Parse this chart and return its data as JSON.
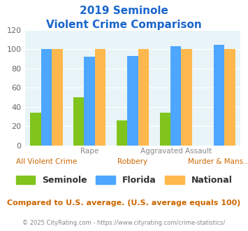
{
  "title_line1": "2019 Seminole",
  "title_line2": "Violent Crime Comparison",
  "categories": [
    "All Violent Crime",
    "Rape",
    "Robbery",
    "Aggravated Assault",
    "Murder & Mans..."
  ],
  "seminole": [
    34,
    50,
    26,
    34,
    0
  ],
  "florida": [
    100,
    92,
    93,
    103,
    105
  ],
  "national": [
    100,
    100,
    100,
    100,
    100
  ],
  "colors": {
    "seminole": "#80c41c",
    "florida": "#4da6ff",
    "national": "#ffb84d"
  },
  "ylim": [
    0,
    120
  ],
  "yticks": [
    0,
    20,
    40,
    60,
    80,
    100,
    120
  ],
  "title_color": "#1a66cc",
  "bg_color": "#e8f4f8",
  "footer_text": "© 2025 CityRating.com - https://www.cityrating.com/crime-statistics/",
  "note_text": "Compared to U.S. average. (U.S. average equals 100)",
  "note_color": "#cc6600",
  "footer_color": "#888888",
  "label_top_color": "#888888",
  "label_bottom_color": "#cc6600"
}
